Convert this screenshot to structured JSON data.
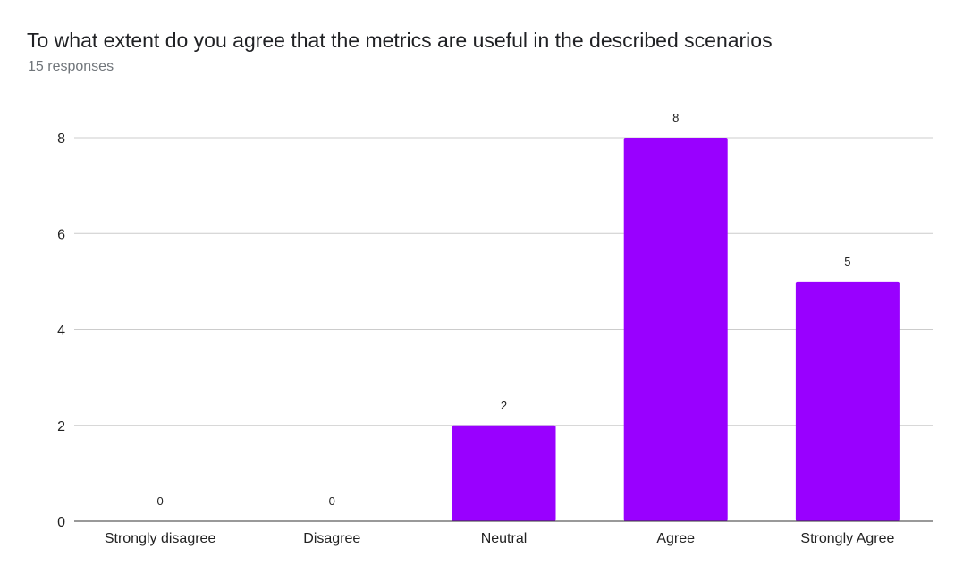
{
  "header": {
    "title": "To what extent do you agree that the metrics are useful in the described scenarios",
    "responses": "15 responses"
  },
  "chart_data": {
    "type": "bar",
    "title": "To what extent do you agree that the metrics are useful in the described scenarios",
    "categories": [
      "Strongly disagree",
      "Disagree",
      "Neutral",
      "Agree",
      "Strongly Agree"
    ],
    "values": [
      0,
      0,
      2,
      8,
      5
    ],
    "ylim": [
      0,
      8
    ],
    "yticks": [
      0,
      2,
      4,
      6,
      8
    ],
    "xlabel": "",
    "ylabel": "",
    "grid": true,
    "bar_color": "#9900ff"
  }
}
